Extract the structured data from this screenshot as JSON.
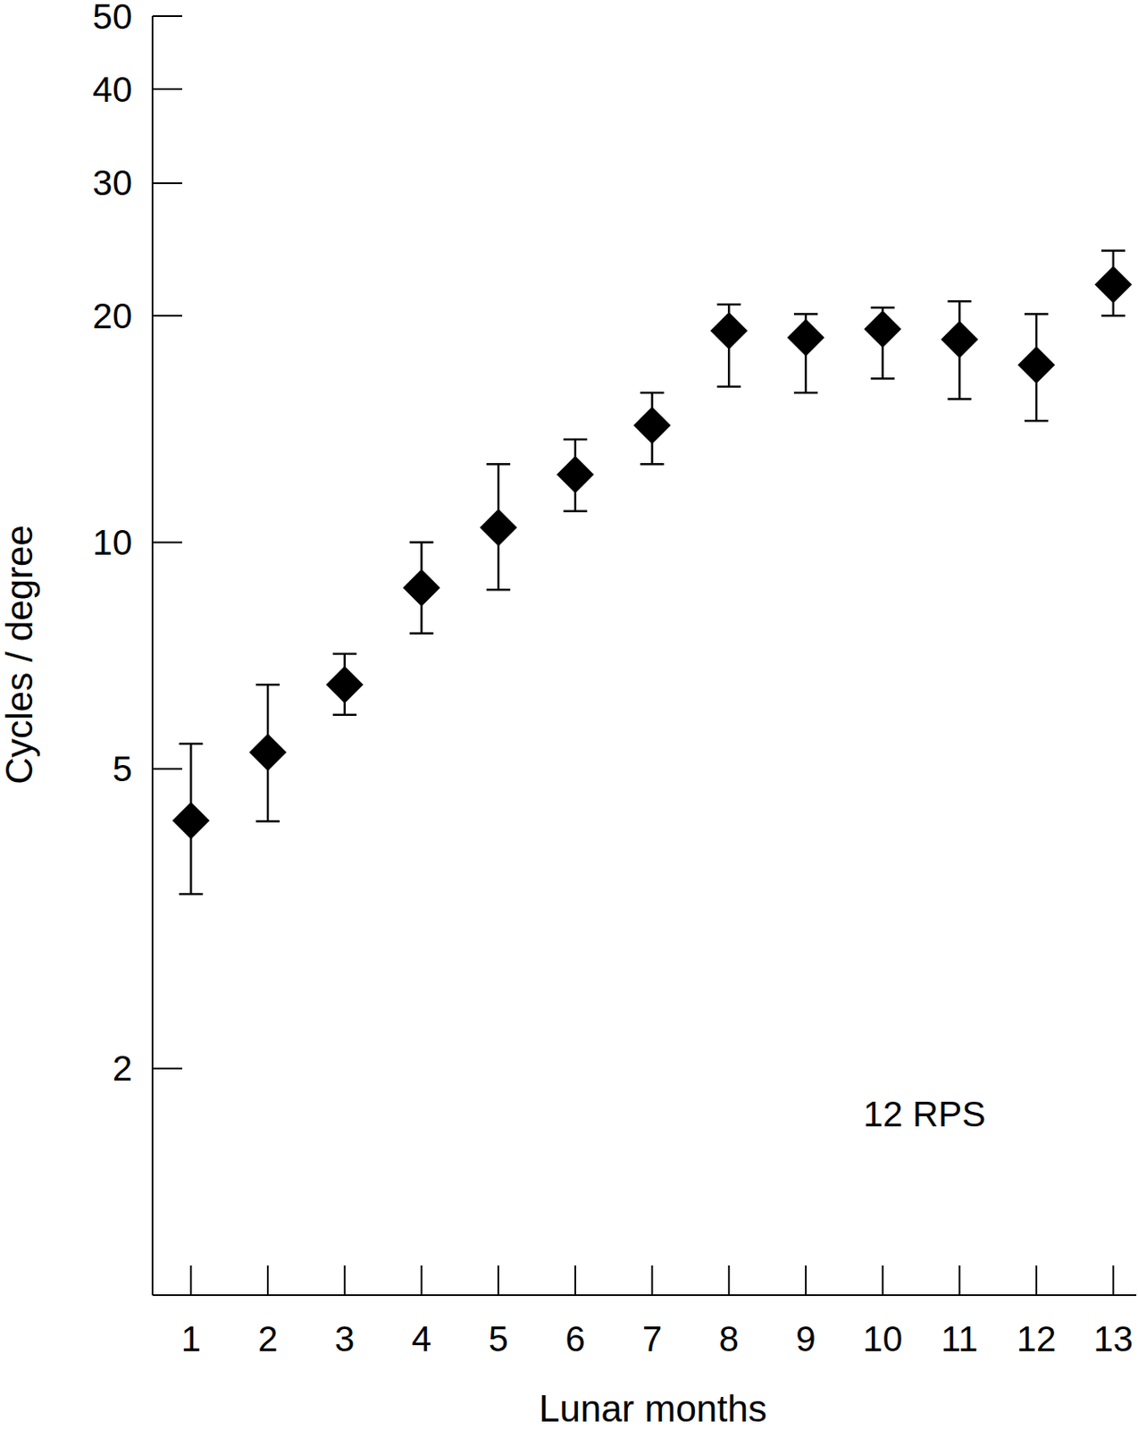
{
  "chart_data": {
    "type": "scatter",
    "x_label": "Lunar months",
    "y_label": "Cycles / degree",
    "annotation": "12 RPS",
    "x": [
      1,
      2,
      3,
      4,
      5,
      6,
      7,
      8,
      9,
      10,
      11,
      12,
      13
    ],
    "values": [
      4.27,
      5.26,
      6.47,
      8.7,
      10.46,
      12.3,
      14.3,
      19.1,
      18.7,
      19.2,
      18.6,
      17.2,
      22.0
    ],
    "lower": [
      3.41,
      4.26,
      5.9,
      7.57,
      8.65,
      11.0,
      12.7,
      16.1,
      15.8,
      16.5,
      15.5,
      14.5,
      20.0
    ],
    "upper": [
      5.4,
      6.47,
      7.11,
      10.0,
      12.7,
      13.7,
      15.8,
      20.7,
      20.1,
      20.5,
      20.9,
      20.1,
      24.4
    ],
    "color": "#000000",
    "marker": "diamond",
    "log": "y",
    "grid": false,
    "xlim": [
      0.5,
      13.3
    ],
    "xticks": [
      1,
      2,
      3,
      4,
      5,
      6,
      7,
      8,
      9,
      10,
      11,
      12,
      13
    ],
    "ylim": [
      1,
      50
    ],
    "yticks": [
      2,
      5,
      10,
      20,
      30,
      40,
      50
    ]
  }
}
